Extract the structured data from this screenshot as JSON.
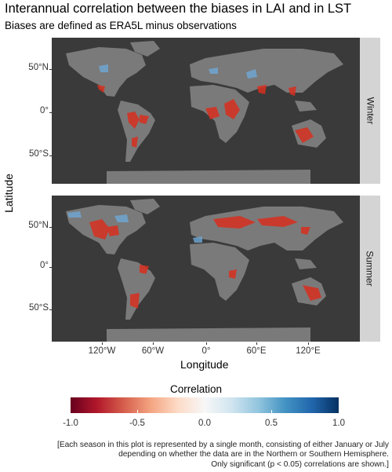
{
  "title": "Interannual correlation between the biases in LAI and in LST",
  "subtitle": "Biases are defined as ERA5L minus observations",
  "axes": {
    "ylabel": "Latitude",
    "xlabel": "Longitude",
    "yticks": [
      "50°N",
      "0°",
      "50°S"
    ],
    "xticks": [
      "120°W",
      "60°W",
      "0°",
      "60°E",
      "120°E"
    ]
  },
  "panels": [
    {
      "label": "Winter"
    },
    {
      "label": "Summer"
    }
  ],
  "legend": {
    "title": "Correlation",
    "ticks": [
      "-1.0",
      "-0.5",
      "0.0",
      "0.5",
      "1.0"
    ]
  },
  "footnote": [
    "[Each season in this plot is represented by a single month, consisting of either January or July",
    "depending on whether the data are in the Northern or Southern Hemisphere.",
    "Only significant (p < 0.05) correlations are shown.]"
  ],
  "colors": {
    "ocean": "#3a3a3a",
    "land": "#7a7a7a",
    "negative": "#d7301f",
    "positive": "#6fa8d6"
  }
}
